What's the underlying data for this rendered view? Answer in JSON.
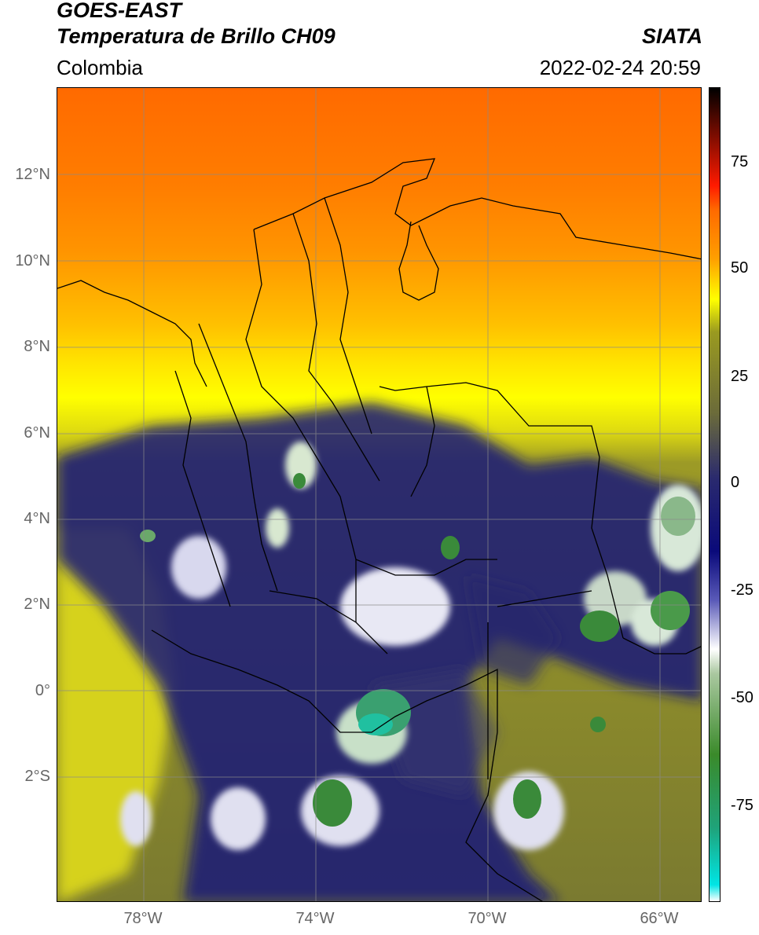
{
  "header": {
    "satellite": "GOES-EAST",
    "product": "Temperatura de Brillo CH09",
    "institution": "SIATA",
    "region": "Colombia",
    "datetime": "2022-02-24 20:59"
  },
  "axes": {
    "lat_labels": [
      "12°N",
      "10°N",
      "8°N",
      "6°N",
      "4°N",
      "2°N",
      "0°",
      "2°S"
    ],
    "lon_labels": [
      "78°W",
      "74°W",
      "70°W",
      "66°W"
    ]
  },
  "colorbar": {
    "ticks": [
      "75",
      "50",
      "25",
      "0",
      "-25",
      "-50",
      "-75"
    ],
    "stops": [
      "#ffffff",
      "#00e5e5",
      "#1fa37a",
      "#3a8a2a",
      "#aac8a0",
      "#ffffff",
      "#5a5ab8",
      "#0a0a7a",
      "#2a2a6e",
      "#6b6b3a",
      "#9a9a20",
      "#ffff00",
      "#ff9f00",
      "#ff6a00",
      "#ff1a00",
      "#000000"
    ]
  }
}
